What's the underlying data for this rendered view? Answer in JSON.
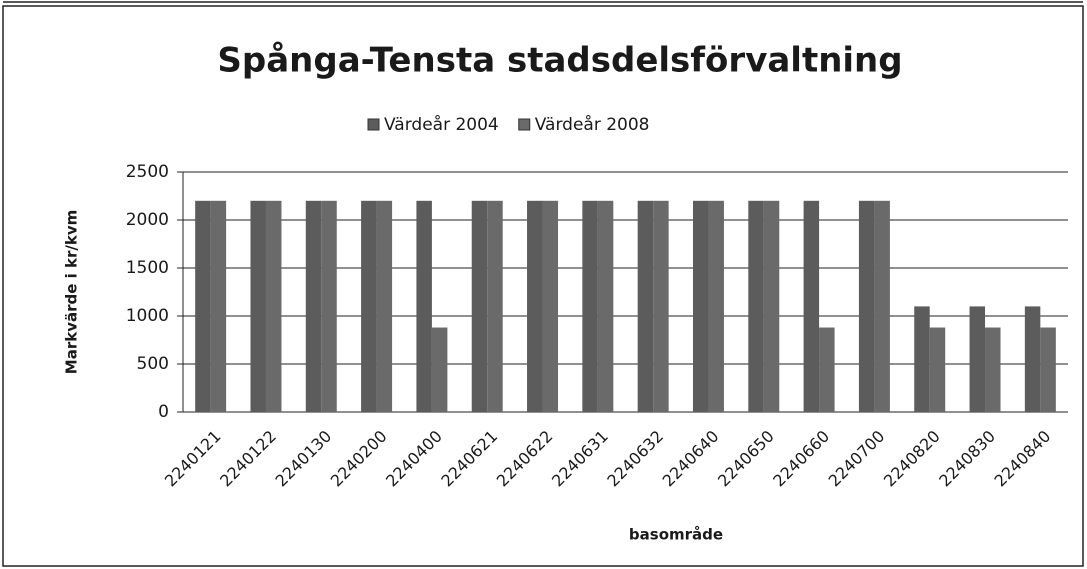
{
  "chart_data": {
    "type": "bar",
    "title": "Spånga-Tensta stadsdelsförvaltning",
    "x_label": "basområde",
    "y_label": "Markvärde  i kr/kvm",
    "categories": [
      "2240121",
      "2240122",
      "2240130",
      "2240200",
      "2240400",
      "2240621",
      "2240622",
      "2240631",
      "2240632",
      "2240640",
      "2240650",
      "2240660",
      "2240700",
      "2240820",
      "2240830",
      "2240840"
    ],
    "series": [
      {
        "name": "Värdeår 2004",
        "color": "#5c5c5c",
        "values": [
          2200,
          2200,
          2200,
          2200,
          2200,
          2200,
          2200,
          2200,
          2200,
          2200,
          2200,
          2200,
          2200,
          1100,
          1100,
          1100
        ]
      },
      {
        "name": "Värdeår 2008",
        "color": "#6a6a6a",
        "values": [
          2200,
          2200,
          2200,
          2200,
          880,
          2200,
          2200,
          2200,
          2200,
          2200,
          2200,
          880,
          2200,
          880,
          880,
          880
        ]
      }
    ],
    "ylim": [
      0,
      2500
    ],
    "yticks": [
      0,
      500,
      1000,
      1500,
      2000,
      2500
    ],
    "grid": true,
    "legend": "top"
  }
}
